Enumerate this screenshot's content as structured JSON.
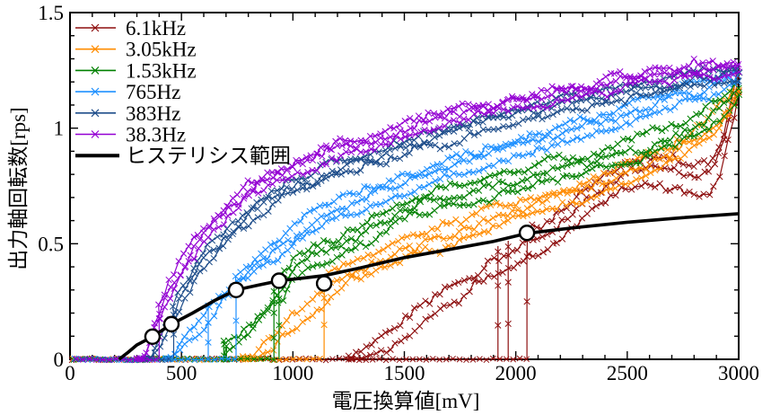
{
  "chart_data": {
    "type": "line",
    "title": "",
    "xlabel": "電圧換算値[mV]",
    "ylabel": "出力軸回転数[rps]",
    "xlim": [
      0,
      3000
    ],
    "ylim": [
      0,
      1.5
    ],
    "x_major_ticks": [
      0,
      500,
      1000,
      1500,
      2000,
      2500,
      3000
    ],
    "x_tick_labels": [
      "0",
      "500",
      "1000",
      "1500",
      "2000",
      "2500",
      "3000"
    ],
    "x_minor_step": 100,
    "y_major_ticks": [
      0,
      0.5,
      1,
      1.5
    ],
    "y_tick_labels": [
      "0",
      "0.5",
      "1",
      "1.5"
    ],
    "y_minor_step": 0.1,
    "grid": false,
    "legend_position": "top-left",
    "marker": "x",
    "series": [
      {
        "name": "6.1kHz",
        "color": "#8e0f0f",
        "start_mV": 2050,
        "extra_start_lines_mV": [
          1920,
          1966
        ],
        "stop_mV": 1250,
        "down_offsets": [
          -0.05,
          -0.11
        ],
        "noise": 0.024,
        "curve": [
          [
            1250,
            0.04
          ],
          [
            1320,
            0.09
          ],
          [
            1400,
            0.15
          ],
          [
            1500,
            0.22
          ],
          [
            1600,
            0.29
          ],
          [
            1700,
            0.35
          ],
          [
            1800,
            0.42
          ],
          [
            1900,
            0.48
          ],
          [
            2000,
            0.53
          ],
          [
            2060,
            0.56
          ],
          [
            2150,
            0.6
          ],
          [
            2250,
            0.67
          ],
          [
            2350,
            0.75
          ],
          [
            2430,
            0.81
          ],
          [
            2500,
            0.85
          ],
          [
            2600,
            0.875
          ],
          [
            2700,
            0.86
          ],
          [
            2800,
            0.835
          ],
          [
            2870,
            0.85
          ],
          [
            2920,
            0.95
          ],
          [
            2960,
            1.1
          ],
          [
            2985,
            1.2
          ],
          [
            3000,
            1.26
          ]
        ]
      },
      {
        "name": "3.05kHz",
        "color": "#ff8c00",
        "start_mV": 1140,
        "extra_start_lines_mV": [],
        "stop_mV": 775,
        "down_offsets": [
          -0.035,
          -0.075
        ],
        "noise": 0.02,
        "curve": [
          [
            775,
            0.03
          ],
          [
            850,
            0.09
          ],
          [
            930,
            0.16
          ],
          [
            1010,
            0.23
          ],
          [
            1090,
            0.29
          ],
          [
            1150,
            0.34
          ],
          [
            1250,
            0.4
          ],
          [
            1350,
            0.45
          ],
          [
            1500,
            0.51
          ],
          [
            1700,
            0.58
          ],
          [
            1900,
            0.645
          ],
          [
            2100,
            0.71
          ],
          [
            2300,
            0.77
          ],
          [
            2500,
            0.84
          ],
          [
            2700,
            0.92
          ],
          [
            2850,
            1.01
          ],
          [
            2950,
            1.12
          ],
          [
            3000,
            1.22
          ]
        ]
      },
      {
        "name": "1.53kHz",
        "color": "#008000",
        "start_mV": 938,
        "extra_start_lines_mV": [
          915
        ],
        "stop_mV": 690,
        "down_offsets": [
          -0.04,
          -0.085
        ],
        "noise": 0.018,
        "curve": [
          [
            690,
            0.1
          ],
          [
            760,
            0.16
          ],
          [
            820,
            0.22
          ],
          [
            880,
            0.28
          ],
          [
            940,
            0.33
          ],
          [
            1000,
            0.42
          ],
          [
            1100,
            0.48
          ],
          [
            1200,
            0.53
          ],
          [
            1350,
            0.61
          ],
          [
            1500,
            0.68
          ],
          [
            1700,
            0.74
          ],
          [
            1900,
            0.79
          ],
          [
            2100,
            0.84
          ],
          [
            2300,
            0.89
          ],
          [
            2500,
            0.94
          ],
          [
            2700,
            1.0
          ],
          [
            2850,
            1.07
          ],
          [
            2950,
            1.16
          ],
          [
            3000,
            1.22
          ]
        ]
      },
      {
        "name": "765Hz",
        "color": "#1e90ff",
        "start_mV": 745,
        "extra_start_lines_mV": [
          620
        ],
        "stop_mV": 430,
        "down_offsets": [
          -0.03,
          -0.065
        ],
        "noise": 0.018,
        "curve": [
          [
            430,
            0.02
          ],
          [
            500,
            0.1
          ],
          [
            550,
            0.16
          ],
          [
            600,
            0.22
          ],
          [
            650,
            0.28
          ],
          [
            700,
            0.33
          ],
          [
            765,
            0.39
          ],
          [
            850,
            0.46
          ],
          [
            950,
            0.53
          ],
          [
            1050,
            0.6
          ],
          [
            1200,
            0.68
          ],
          [
            1400,
            0.76
          ],
          [
            1600,
            0.83
          ],
          [
            1800,
            0.89
          ],
          [
            2000,
            0.95
          ],
          [
            2200,
            1.01
          ],
          [
            2400,
            1.06
          ],
          [
            2600,
            1.12
          ],
          [
            2800,
            1.19
          ],
          [
            3000,
            1.25
          ]
        ]
      },
      {
        "name": "383Hz",
        "color": "#1f4e8b",
        "start_mV": 465,
        "extra_start_lines_mV": [],
        "stop_mV": 330,
        "down_offsets": [
          -0.028,
          -0.06
        ],
        "noise": 0.018,
        "curve": [
          [
            330,
            0.0
          ],
          [
            380,
            0.09
          ],
          [
            430,
            0.17
          ],
          [
            480,
            0.27
          ],
          [
            530,
            0.36
          ],
          [
            600,
            0.46
          ],
          [
            700,
            0.56
          ],
          [
            800,
            0.65
          ],
          [
            900,
            0.72
          ],
          [
            1000,
            0.78
          ],
          [
            1200,
            0.85
          ],
          [
            1400,
            0.91
          ],
          [
            1600,
            0.97
          ],
          [
            1800,
            1.03
          ],
          [
            2000,
            1.08
          ],
          [
            2200,
            1.125
          ],
          [
            2400,
            1.16
          ],
          [
            2600,
            1.2
          ],
          [
            2800,
            1.24
          ],
          [
            3000,
            1.27
          ]
        ]
      },
      {
        "name": "38.3Hz",
        "color": "#9400d3",
        "start_mV": 400,
        "extra_start_lines_mV": [],
        "stop_mV": 300,
        "down_offsets": [
          -0.025,
          -0.055
        ],
        "noise": 0.018,
        "curve": [
          [
            300,
            0.0
          ],
          [
            330,
            0.05
          ],
          [
            360,
            0.12
          ],
          [
            400,
            0.22
          ],
          [
            450,
            0.34
          ],
          [
            500,
            0.43
          ],
          [
            550,
            0.5
          ],
          [
            600,
            0.57
          ],
          [
            700,
            0.66
          ],
          [
            800,
            0.76
          ],
          [
            900,
            0.81
          ],
          [
            1000,
            0.855
          ],
          [
            1200,
            0.93
          ],
          [
            1400,
            0.99
          ],
          [
            1600,
            1.05
          ],
          [
            1800,
            1.1
          ],
          [
            2000,
            1.14
          ],
          [
            2200,
            1.18
          ],
          [
            2400,
            1.21
          ],
          [
            2600,
            1.24
          ],
          [
            2800,
            1.27
          ],
          [
            3000,
            1.29
          ]
        ]
      }
    ],
    "hysteresis_line": {
      "label": "ヒステリシス範囲",
      "color": "#000000",
      "points": [
        [
          220,
          0
        ],
        [
          260,
          0.03
        ],
        [
          300,
          0.062
        ],
        [
          370,
          0.098
        ],
        [
          455,
          0.152
        ],
        [
          550,
          0.2
        ],
        [
          650,
          0.255
        ],
        [
          745,
          0.3
        ],
        [
          850,
          0.322
        ],
        [
          940,
          0.34
        ],
        [
          1050,
          0.352
        ],
        [
          1140,
          0.362
        ],
        [
          1300,
          0.395
        ],
        [
          1500,
          0.44
        ],
        [
          1700,
          0.475
        ],
        [
          1900,
          0.51
        ],
        [
          2050,
          0.545
        ],
        [
          2250,
          0.568
        ],
        [
          2500,
          0.593
        ],
        [
          2750,
          0.613
        ],
        [
          3000,
          0.63
        ]
      ]
    },
    "hysteresis_circles": [
      [
        370,
        0.098
      ],
      [
        455,
        0.152
      ],
      [
        745,
        0.3
      ],
      [
        938,
        0.34
      ],
      [
        1140,
        0.328
      ],
      [
        2050,
        0.547
      ]
    ],
    "legend": [
      {
        "label": "6.1kHz",
        "color": "#8e0f0f",
        "marker": true,
        "thick": false
      },
      {
        "label": "3.05kHz",
        "color": "#ff8c00",
        "marker": true,
        "thick": false
      },
      {
        "label": "1.53kHz",
        "color": "#008000",
        "marker": true,
        "thick": false
      },
      {
        "label": "765Hz",
        "color": "#1e90ff",
        "marker": true,
        "thick": false
      },
      {
        "label": "383Hz",
        "color": "#1f4e8b",
        "marker": true,
        "thick": false
      },
      {
        "label": "38.3Hz",
        "color": "#9400d3",
        "marker": true,
        "thick": false
      },
      {
        "label": "ヒステリシス範囲",
        "color": "#000000",
        "marker": false,
        "thick": true
      }
    ]
  }
}
